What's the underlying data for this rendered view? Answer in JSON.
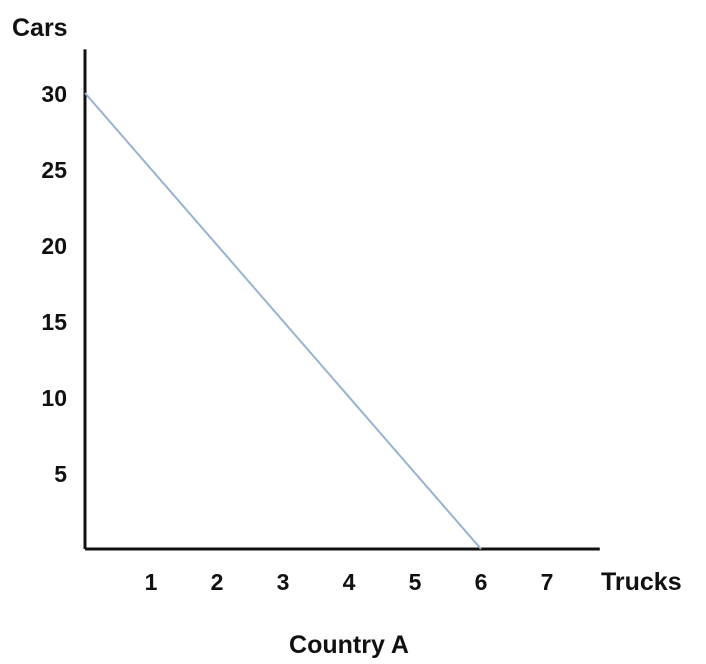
{
  "chart_data": {
    "type": "line",
    "title": "Country A",
    "xlabel": "Trucks",
    "ylabel": "Cars",
    "x_ticks": [
      "1",
      "2",
      "3",
      "4",
      "5",
      "6",
      "7"
    ],
    "y_ticks": [
      "5",
      "10",
      "15",
      "20",
      "25",
      "30"
    ],
    "xlim": [
      0,
      7.8
    ],
    "ylim": [
      0,
      33
    ],
    "grid": false,
    "legend": "none",
    "series": [
      {
        "color": "#98b2d0",
        "points": [
          {
            "x": 0,
            "y": 30
          },
          {
            "x": 6,
            "y": 0
          }
        ]
      }
    ]
  }
}
